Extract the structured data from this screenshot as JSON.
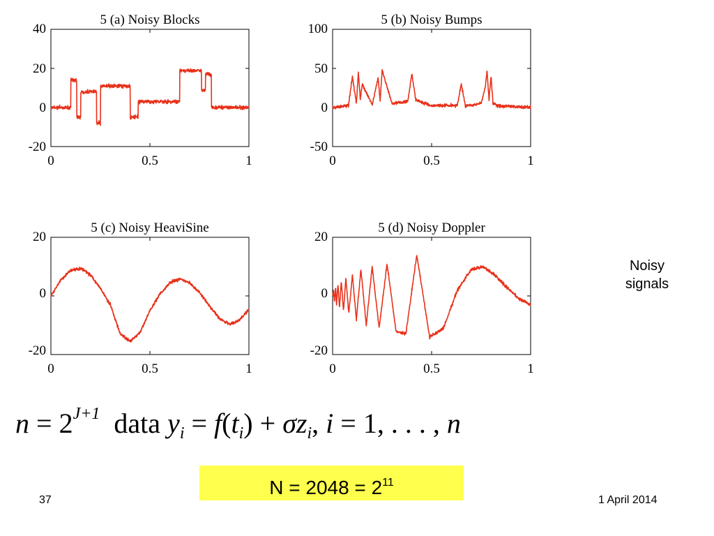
{
  "chart_data": [
    {
      "type": "line",
      "title": "5 (a) Noisy Blocks",
      "xlim": [
        0,
        1
      ],
      "ylim": [
        -20,
        40
      ],
      "xticks": [
        "0",
        "0.5",
        "1"
      ],
      "yticks": [
        "-20",
        "0",
        "20",
        "40"
      ],
      "series": [
        {
          "x": [
            0,
            0.1,
            0.1,
            0.13,
            0.13,
            0.15,
            0.15,
            0.23,
            0.23,
            0.25,
            0.25,
            0.4,
            0.4,
            0.44,
            0.44,
            0.65,
            0.65,
            0.76,
            0.76,
            0.78,
            0.78,
            0.81,
            0.81,
            1
          ],
          "y": [
            0,
            0,
            14,
            14,
            -5,
            -5,
            8,
            8,
            -8,
            -8,
            11,
            11,
            -5,
            -5,
            3,
            3,
            19,
            19,
            9,
            9,
            17,
            17,
            0,
            0
          ],
          "noise": 1.2
        }
      ],
      "grid": false
    },
    {
      "type": "line",
      "title": "5 (b) Noisy Bumps",
      "xlim": [
        0,
        1
      ],
      "ylim": [
        -50,
        100
      ],
      "xticks": [
        "0",
        "0.5",
        "1"
      ],
      "yticks": [
        "-50",
        "0",
        "50",
        "100"
      ],
      "series": [
        {
          "x": [
            0,
            0.08,
            0.1,
            0.12,
            0.13,
            0.14,
            0.15,
            0.2,
            0.23,
            0.24,
            0.25,
            0.3,
            0.38,
            0.4,
            0.42,
            0.5,
            0.63,
            0.65,
            0.67,
            0.75,
            0.77,
            0.78,
            0.79,
            0.8,
            0.81,
            0.83,
            1
          ],
          "y": [
            0,
            2,
            40,
            5,
            45,
            10,
            30,
            3,
            38,
            8,
            48,
            5,
            8,
            43,
            10,
            2,
            3,
            30,
            2,
            5,
            25,
            47,
            10,
            40,
            5,
            2,
            0
          ],
          "noise": 1
        }
      ],
      "grid": false
    },
    {
      "type": "line",
      "title": "5 (c) Noisy HeaviSine",
      "xlim": [
        0,
        1
      ],
      "ylim": [
        -20,
        20
      ],
      "xticks": [
        "0",
        "0.5",
        "1"
      ],
      "yticks": [
        "-20",
        "0",
        "20"
      ],
      "series": [
        {
          "x": [
            0,
            0.05,
            0.1,
            0.15,
            0.2,
            0.25,
            0.3,
            0.35,
            0.4,
            0.45,
            0.5,
            0.55,
            0.6,
            0.65,
            0.7,
            0.75,
            0.8,
            0.85,
            0.9,
            0.95,
            1
          ],
          "y": [
            0,
            5.5,
            8.8,
            9.4,
            7.2,
            2.6,
            -3,
            -13,
            -15.5,
            -12.5,
            -5,
            0.5,
            4.5,
            5.8,
            4.5,
            1.2,
            -3.4,
            -7.6,
            -9.6,
            -8.5,
            -4.5
          ],
          "noise": 1
        }
      ],
      "grid": false
    },
    {
      "type": "line",
      "title": "5 (d) Noisy Doppler",
      "xlim": [
        0,
        1
      ],
      "ylim": [
        -20,
        20
      ],
      "xticks": [
        "0",
        "0.5",
        "1"
      ],
      "yticks": [
        "-20",
        "0",
        "20"
      ],
      "series": [
        {
          "x": [
            0,
            0.005,
            0.01,
            0.015,
            0.02,
            0.027,
            0.035,
            0.044,
            0.055,
            0.067,
            0.082,
            0.1,
            0.12,
            0.143,
            0.17,
            0.2,
            0.235,
            0.275,
            0.32,
            0.37,
            0.425,
            0.49,
            0.56,
            0.63,
            0.7,
            0.76,
            0.82,
            0.88,
            0.94,
            1
          ],
          "y": [
            0,
            2,
            -2,
            3,
            -3,
            4,
            -4,
            5,
            -5,
            6,
            -6,
            7,
            -8,
            9,
            -10,
            10,
            -11,
            11,
            -12,
            -13,
            14,
            -14,
            -11,
            2,
            9,
            10,
            7,
            3,
            -1,
            -3
          ],
          "noise": 1
        }
      ],
      "grid": false
    }
  ],
  "side_note": {
    "line1": "Noisy",
    "line2": "signals"
  },
  "formula": {
    "n": "n",
    "eq1": "=",
    "base": "2",
    "exp": "J+1",
    "word": "data",
    "y": "y",
    "sub_i": "i",
    "eq2": "=",
    "f": "f",
    "open": "(",
    "t": "t",
    "sub_i2": "i",
    "close": ")",
    "plus": "+",
    "sigma": "σ",
    "z": "z",
    "sub_i3": "i",
    "comma": ",",
    "i": "i",
    "eq3": "=",
    "range": "1, . . . ,",
    "n_end": "n"
  },
  "highlight": {
    "text": "N = 2048 = 2",
    "sup": "11"
  },
  "footer": {
    "slide_number": "37",
    "date": "1 April 2014"
  },
  "colors": {
    "signal": "#e8311a",
    "highlight": "#ffff4d"
  }
}
